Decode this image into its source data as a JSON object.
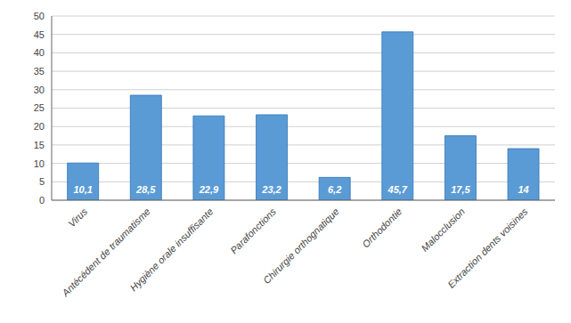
{
  "chart_data": {
    "type": "bar",
    "categories": [
      "Virus",
      "Antécédent de traumatisme",
      "Hygiène orale insuffisante",
      "Parafonctions",
      "Chirurgie orthognatique",
      "Orthodontie",
      "Malocclusion",
      "Extraction dents voisines"
    ],
    "values": [
      10.1,
      28.5,
      22.9,
      23.2,
      6.2,
      45.7,
      17.5,
      14
    ],
    "value_labels": [
      "10,1",
      "28,5",
      "22,9",
      "23,2",
      "6,2",
      "45,7",
      "17,5",
      "14"
    ],
    "data_labels": true,
    "color": "#5b9bd5",
    "ylim": [
      0,
      50
    ],
    "yticks": [
      0,
      5,
      10,
      15,
      20,
      25,
      30,
      35,
      40,
      45,
      50
    ],
    "grid": true
  }
}
